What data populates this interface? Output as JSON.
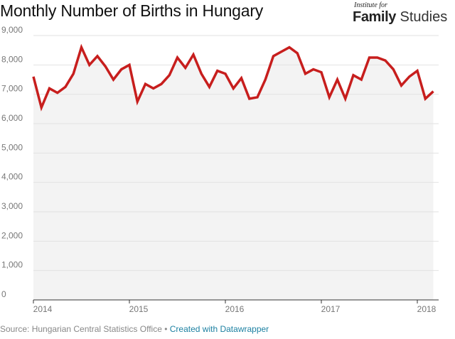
{
  "header": {
    "title": "Monthly Number of Births in Hungary"
  },
  "logo": {
    "top_text": "Institute for",
    "main_bold": "Family",
    "main_light": "Studies"
  },
  "footer": {
    "source": "Source: Hungarian Central Statistics Office",
    "separator": " • ",
    "credit": "Created with Datawrapper"
  },
  "colors": {
    "line": "#c71e1d",
    "area": "#f3f3f3",
    "grid": "#e2e2e2",
    "axis": "#333333"
  },
  "chart_data": {
    "type": "line",
    "title": "Monthly Number of Births in Hungary",
    "xlabel": "",
    "ylabel": "",
    "ylim": [
      0,
      9000
    ],
    "yticks": [
      0,
      1000,
      2000,
      3000,
      4000,
      5000,
      6000,
      7000,
      8000,
      9000
    ],
    "ytick_labels": [
      "0",
      "1,000",
      "2,000",
      "3,000",
      "4,000",
      "5,000",
      "6,000",
      "7,000",
      "8,000",
      "9,000"
    ],
    "xticks": [
      2014,
      2015,
      2016,
      2017,
      2018
    ],
    "xtick_labels": [
      "2014",
      "2015",
      "2016",
      "2017",
      "2018"
    ],
    "grid": true,
    "area_fill": true,
    "series": [
      {
        "start": "2014-01",
        "values": [
          7600,
          6550,
          7200,
          7050,
          7250,
          7700,
          8600,
          8000,
          8300,
          7950,
          7500,
          7850,
          8000,
          6750,
          7350,
          7200,
          7350,
          7650,
          8250,
          7900,
          8350,
          7700,
          7250,
          7800,
          7700,
          7200,
          7550,
          6850,
          6900,
          7500,
          8300,
          8450,
          8600,
          8400,
          7700,
          7850,
          7750,
          6900,
          7500,
          6850,
          7650,
          7500,
          8250,
          8250,
          8150,
          7850,
          7300,
          7600,
          7800,
          6850,
          7100
        ]
      }
    ]
  }
}
